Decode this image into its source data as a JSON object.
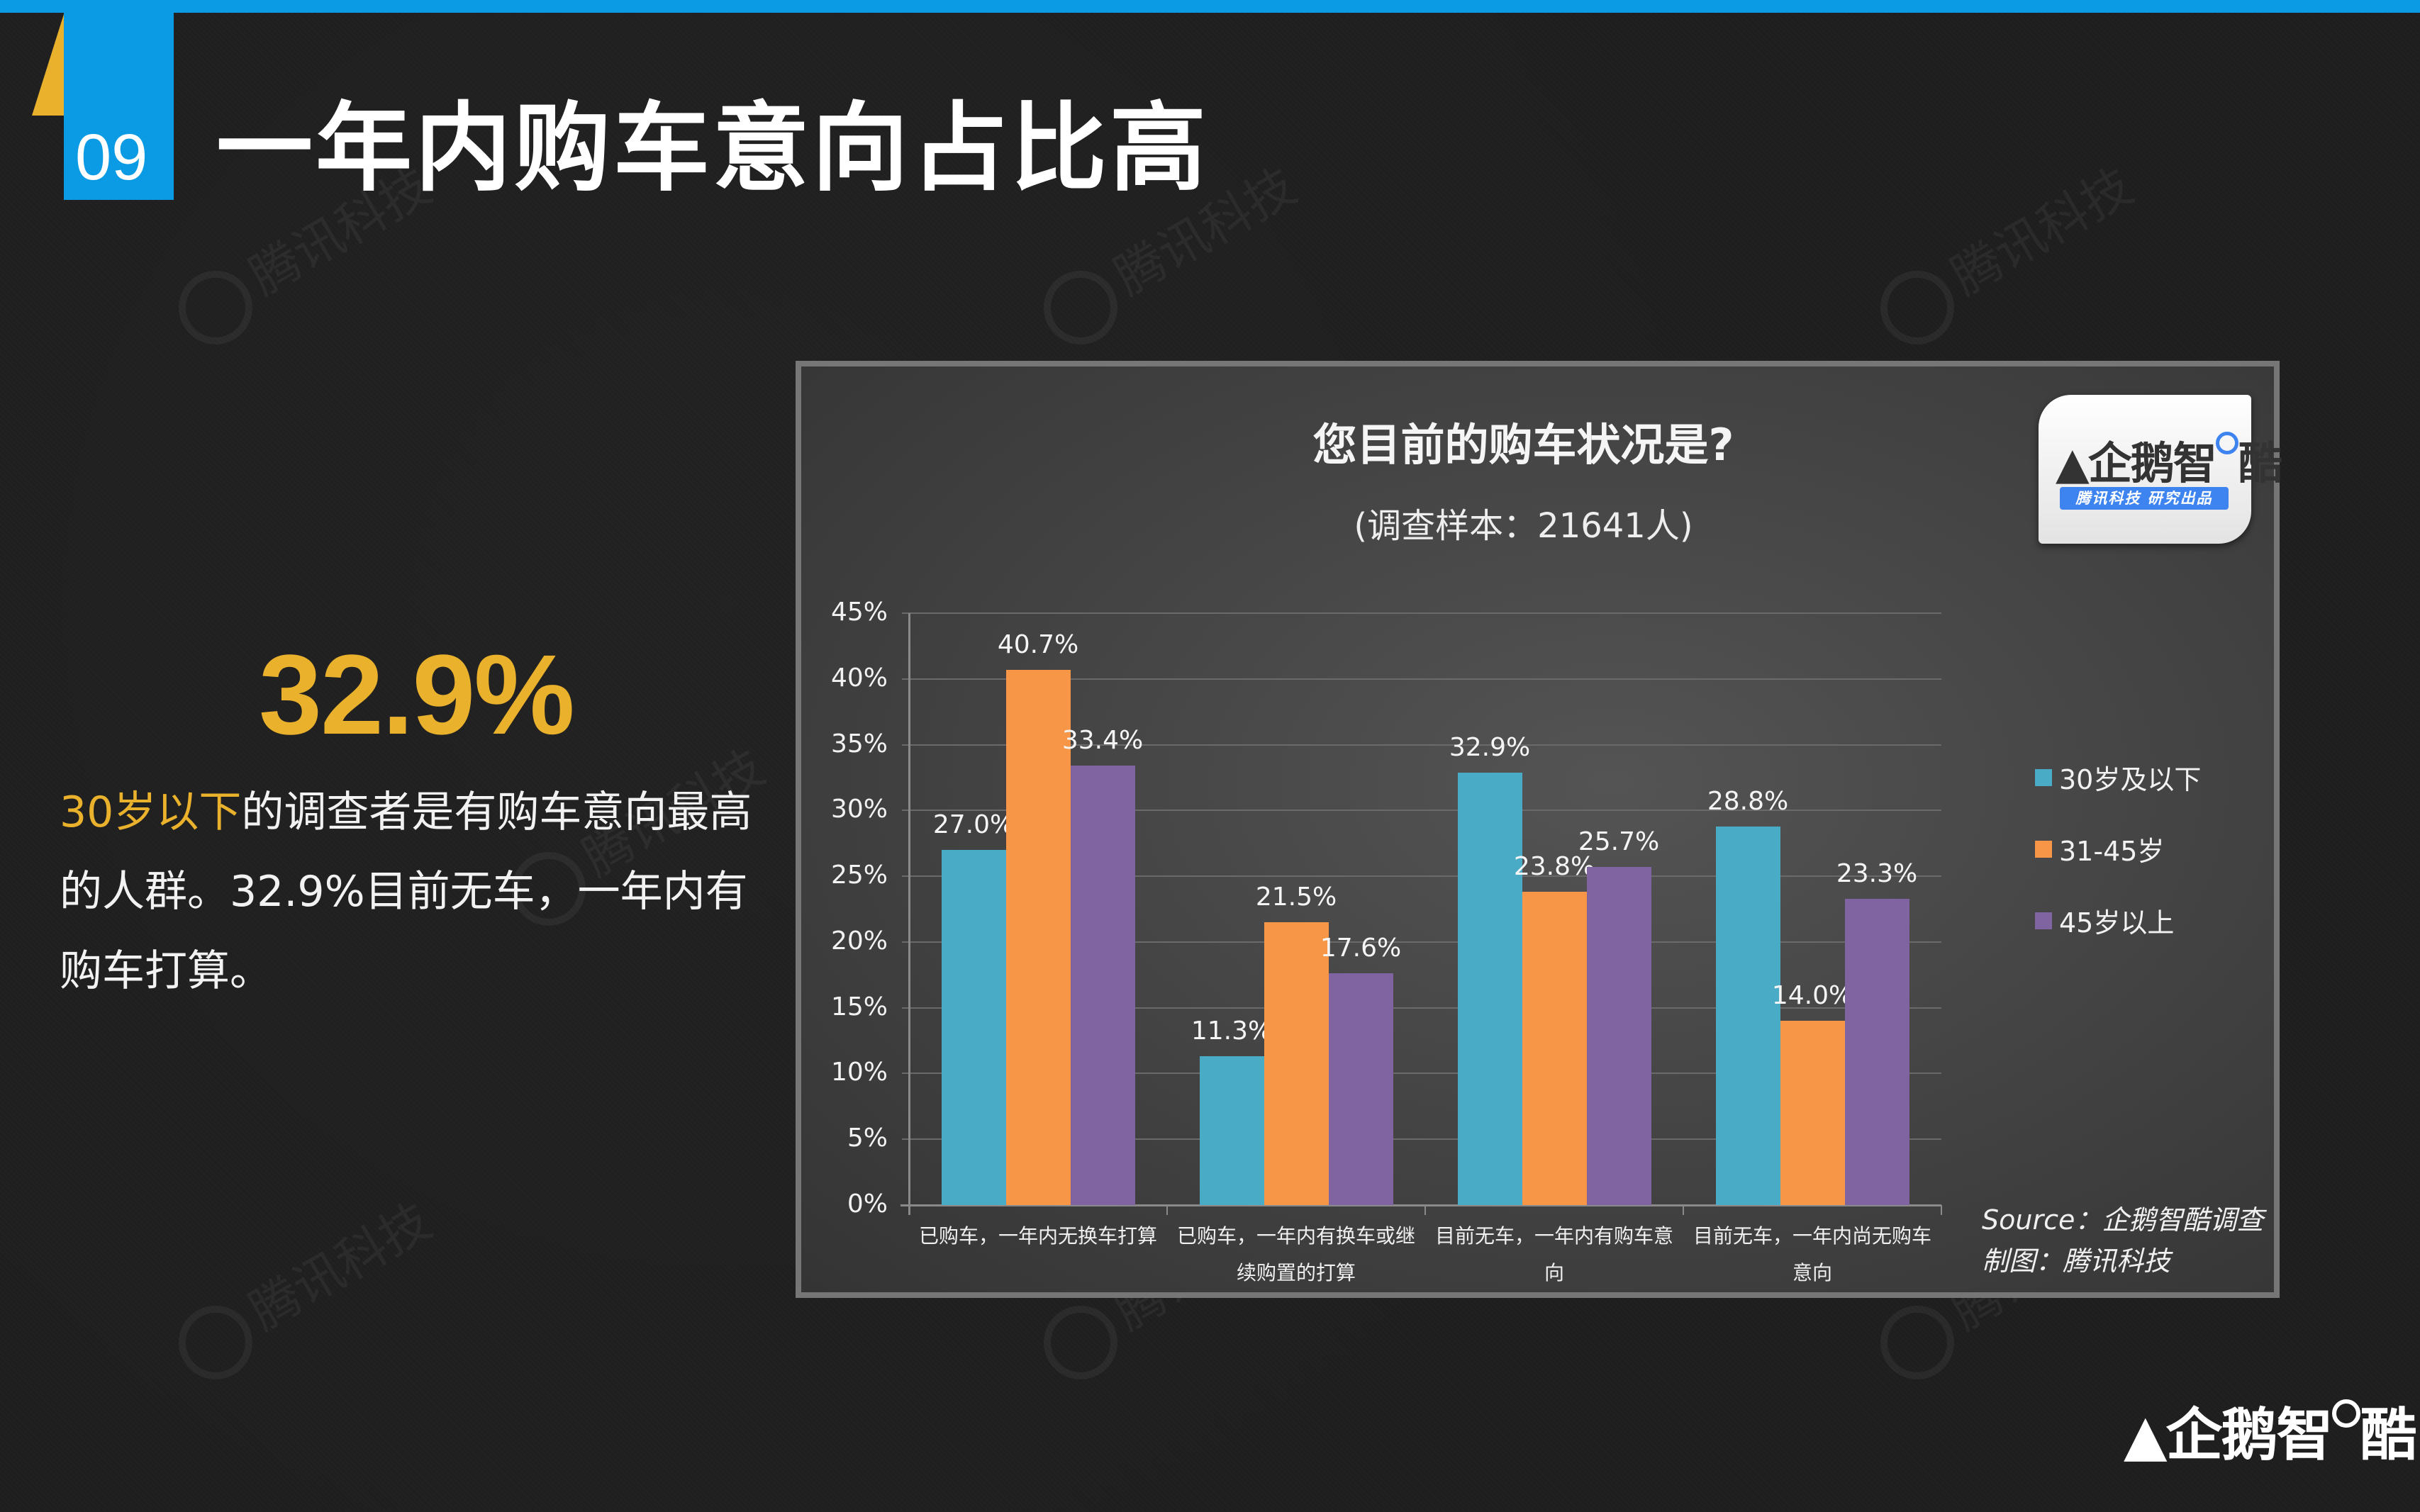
{
  "header": {
    "section_number": "09",
    "title": "一年内购车意向占比高"
  },
  "highlight": {
    "stat": "32.9%",
    "description_highlight": "30岁以下",
    "description_rest": "的调查者是有购车意向最高的人群。32.9%目前无车，一年内有购车打算。"
  },
  "watermark_text": "腾讯科技",
  "chart_logo": {
    "name_prefix": "企鹅智",
    "name_suffix": "酷",
    "tagline": "腾讯科技  研究出品"
  },
  "source": {
    "line1": "Source：企鹅智酷调查",
    "line2": "制图：腾讯科技"
  },
  "brand_logo": {
    "prefix": "企鹅智",
    "suffix": "酷"
  },
  "colors": {
    "accent_blue": "#0a9be4",
    "accent_yellow": "#eab12c",
    "series_30_under": "#4aabc6",
    "series_31_45": "#f79646",
    "series_45_over": "#8064a2"
  },
  "chart_data": {
    "type": "bar",
    "title": "您目前的购车状况是?",
    "subtitle": "(调查样本：21641人)",
    "xlabel": "",
    "ylabel": "",
    "ylim": [
      0,
      45
    ],
    "yticks": [
      "0%",
      "5%",
      "10%",
      "15%",
      "20%",
      "25%",
      "30%",
      "35%",
      "40%",
      "45%"
    ],
    "grid": true,
    "legend_position": "right",
    "categories": [
      "已购车，一年内无换车打算",
      "已购车，一年内有换车或继续购置的打算",
      "目前无车，一年内有购车意向",
      "目前无车，一年内尚无购车意向"
    ],
    "category_lines": [
      [
        "已购车，一年内无换车打算",
        ""
      ],
      [
        "已购车，一年内有换车或继",
        "续购置的打算"
      ],
      [
        "目前无车，一年内有购车意",
        "向"
      ],
      [
        "目前无车，一年内尚无购车",
        "意向"
      ]
    ],
    "series": [
      {
        "name": "30岁及以下",
        "color": "#4aabc6",
        "values": [
          27.0,
          11.3,
          32.9,
          28.8
        ],
        "labels": [
          "27.0%",
          "11.3%",
          "32.9%",
          "28.8%"
        ]
      },
      {
        "name": "31-45岁",
        "color": "#f79646",
        "values": [
          40.7,
          21.5,
          23.8,
          14.0
        ],
        "labels": [
          "40.7%",
          "21.5%",
          "23.8%",
          "14.0%"
        ]
      },
      {
        "name": "45岁以上",
        "color": "#8064a2",
        "values": [
          33.4,
          17.6,
          25.7,
          23.3
        ],
        "labels": [
          "33.4%",
          "17.6%",
          "25.7%",
          "23.3%"
        ]
      }
    ]
  }
}
